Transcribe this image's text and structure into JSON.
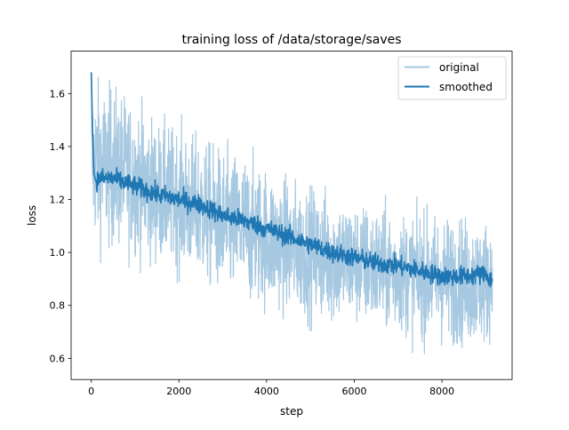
{
  "chart_data": {
    "type": "line",
    "title": "training loss of /data/storage/saves",
    "xlabel": "step",
    "ylabel": "loss",
    "xlim": [
      -460,
      9600
    ],
    "ylim": [
      0.52,
      1.76
    ],
    "x_ticks": [
      0,
      2000,
      4000,
      6000,
      8000
    ],
    "x_tick_labels": [
      "0",
      "2000",
      "4000",
      "6000",
      "8000"
    ],
    "y_ticks": [
      0.6,
      0.8,
      1.0,
      1.2,
      1.4,
      1.6
    ],
    "y_tick_labels": [
      "0.6",
      "0.8",
      "1.0",
      "1.2",
      "1.4",
      "1.6"
    ],
    "grid": false,
    "legend": {
      "position": "top-right",
      "entries": [
        "original",
        "smoothed"
      ]
    },
    "x_range": [
      0,
      9150
    ],
    "series": [
      {
        "name": "original",
        "color": "#a6c8e0",
        "style": "noisy band (per-step loss)",
        "x": [
          0,
          500,
          1000,
          1500,
          2000,
          2500,
          3000,
          3500,
          4000,
          4500,
          5000,
          5500,
          6000,
          6500,
          7000,
          7500,
          8000,
          8500,
          9000,
          9150
        ],
        "upper_envelope": [
          1.68,
          1.66,
          1.6,
          1.52,
          1.5,
          1.46,
          1.42,
          1.4,
          1.35,
          1.3,
          1.28,
          1.26,
          1.22,
          1.2,
          1.18,
          1.18,
          1.17,
          1.16,
          1.15,
          1.12
        ],
        "lower_envelope": [
          1.0,
          0.98,
          0.96,
          0.93,
          0.9,
          0.86,
          0.8,
          0.78,
          0.76,
          0.74,
          0.72,
          0.7,
          0.7,
          0.68,
          0.67,
          0.64,
          0.63,
          0.62,
          0.62,
          0.68
        ]
      },
      {
        "name": "smoothed",
        "color": "#1f77b4",
        "x": [
          0,
          30,
          60,
          100,
          200,
          500,
          1000,
          1500,
          2000,
          2500,
          3000,
          3500,
          4000,
          4500,
          5000,
          5500,
          6000,
          6500,
          7000,
          7500,
          8000,
          8500,
          9000,
          9150
        ],
        "y": [
          1.68,
          1.45,
          1.3,
          1.27,
          1.28,
          1.28,
          1.25,
          1.22,
          1.2,
          1.18,
          1.14,
          1.12,
          1.09,
          1.06,
          1.03,
          1.0,
          0.98,
          0.96,
          0.95,
          0.93,
          0.91,
          0.91,
          0.92,
          0.89
        ]
      }
    ]
  }
}
